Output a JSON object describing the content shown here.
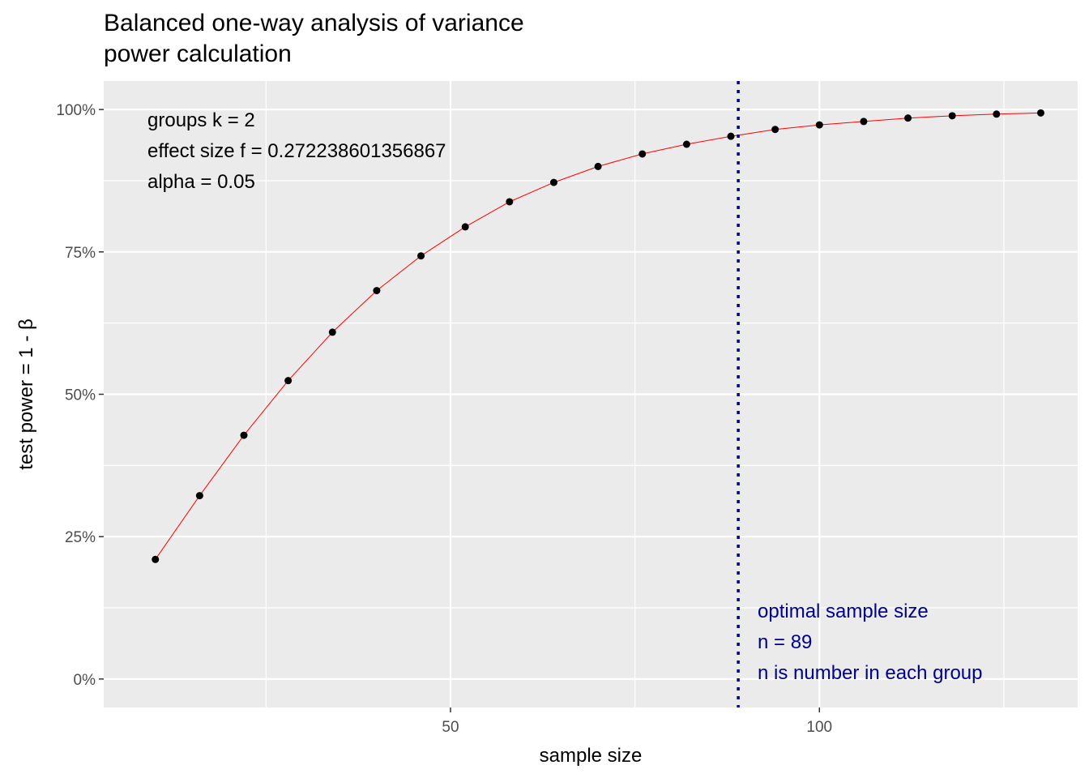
{
  "chart_data": {
    "type": "line",
    "title_line1": "Balanced one-way analysis of variance",
    "title_line2": "power calculation",
    "xlabel": "sample size",
    "ylabel": "test power = 1 - β",
    "xlim": [
      3,
      135
    ],
    "ylim": [
      -0.05,
      1.05
    ],
    "x_ticks": [
      50,
      100
    ],
    "x_tick_labels": [
      "50",
      "100"
    ],
    "x_minor_ticks": [
      25,
      75,
      125
    ],
    "y_ticks": [
      0,
      0.25,
      0.5,
      0.75,
      1.0
    ],
    "y_tick_labels": [
      "0%",
      "25%",
      "50%",
      "75%",
      "100%"
    ],
    "y_minor_ticks": [
      0.125,
      0.375,
      0.625,
      0.875
    ],
    "grid": true,
    "series": [
      {
        "color": "#ff0000",
        "point_color": "#000000",
        "x": [
          10,
          16,
          22,
          28,
          34,
          40,
          46,
          52,
          58,
          64,
          70,
          76,
          82,
          88,
          94,
          100,
          106,
          112,
          118,
          124,
          130
        ],
        "y": [
          0.21,
          0.322,
          0.428,
          0.524,
          0.609,
          0.682,
          0.743,
          0.794,
          0.838,
          0.872,
          0.9,
          0.922,
          0.939,
          0.953,
          0.965,
          0.973,
          0.979,
          0.985,
          0.989,
          0.992,
          0.994
        ]
      }
    ],
    "vline": {
      "x": 89,
      "color": "#00008b"
    },
    "annotations_topleft": [
      "groups k = 2",
      "effect size f = 0.272238601356867",
      "alpha = 0.05"
    ],
    "annotations_bottomright": [
      "optimal sample size",
      "n = 89",
      "n is number in each group"
    ],
    "annotation_br_color": "#00008b",
    "panel_background": "#ebebeb"
  }
}
